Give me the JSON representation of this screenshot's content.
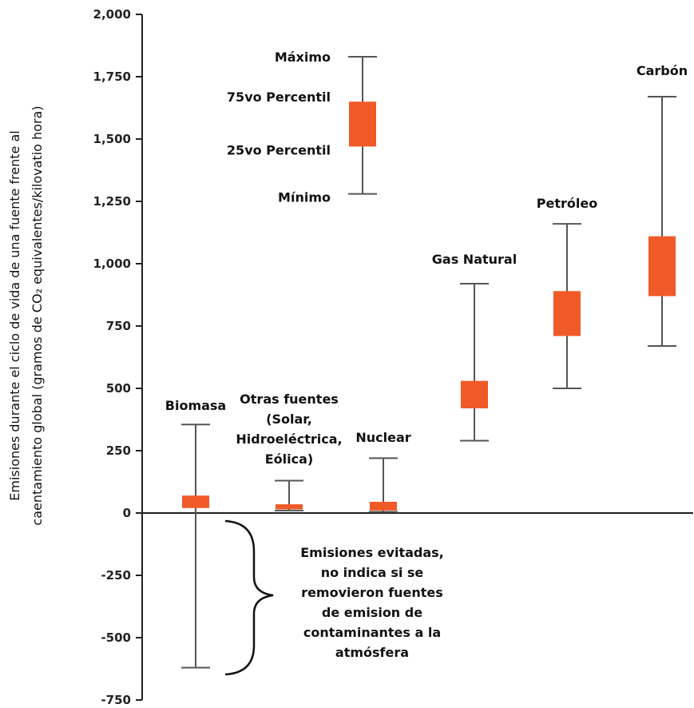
{
  "chart_data": {
    "type": "box",
    "ylabel_lines": [
      "Emisiones durante el ciclo de vida de una fuente frente al",
      "caentamiento global (gramos de CO₂ equivalentes/kilovatio hora)"
    ],
    "ylim": [
      -750,
      2000
    ],
    "yticks": [
      2000,
      1750,
      1500,
      1250,
      1000,
      750,
      500,
      250,
      0,
      -250,
      -500,
      -750
    ],
    "ytick_labels": [
      "2,000",
      "1,750",
      "1,500",
      "1,250",
      "1,000",
      "750",
      "500",
      "250",
      "0",
      "-250",
      "-500",
      "-750"
    ],
    "legend": {
      "min": 1280,
      "q1": 1470,
      "q3": 1650,
      "max": 1830,
      "labels": [
        "Máximo",
        "75vo Percentil",
        "25vo Percentil",
        "Mínimo"
      ]
    },
    "categories": [
      {
        "lines": [
          "Biomasa"
        ],
        "min": -620,
        "q1": 20,
        "q3": 70,
        "max": 355
      },
      {
        "lines": [
          "Otras fuentes",
          "(Solar,",
          "Hidroeléctrica,",
          "Eólica)"
        ],
        "min": 10,
        "q1": 15,
        "q3": 35,
        "max": 130
      },
      {
        "lines": [
          "Nuclear"
        ],
        "min": 5,
        "q1": 10,
        "q3": 45,
        "max": 220
      },
      {
        "lines": [
          "Gas Natural"
        ],
        "min": 290,
        "q1": 420,
        "q3": 530,
        "max": 920
      },
      {
        "lines": [
          "Petróleo"
        ],
        "min": 500,
        "q1": 710,
        "q3": 890,
        "max": 1160
      },
      {
        "lines": [
          "Carbón"
        ],
        "min": 670,
        "q1": 870,
        "q3": 1110,
        "max": 1670
      }
    ],
    "annotation_lines": [
      "Emisiones evitadas,",
      "no indica si se",
      "removieron fuentes",
      "de emision de",
      "contaminantes a la",
      "atmósfera"
    ],
    "box_color": "#f05a28",
    "line_color": "#555555",
    "axis_color": "#222222"
  }
}
